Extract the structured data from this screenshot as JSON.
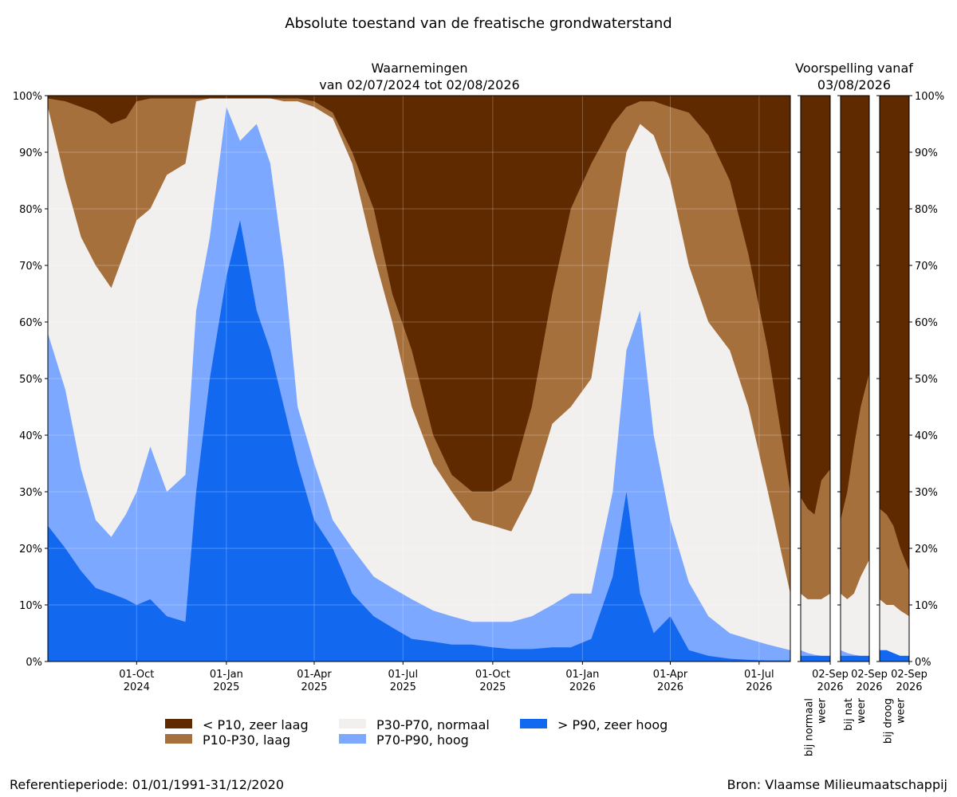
{
  "title": "Absolute toestand van de freatische grondwaterstand",
  "observed_title": [
    "Waarnemingen",
    "van 02/07/2024 tot 02/08/2026"
  ],
  "forecast_title": [
    "Voorspelling vanaf",
    "03/08/2026"
  ],
  "footer_left": "Referentieperiode: 01/01/1991-31/12/2020",
  "footer_right": "Bron: Vlaamse Milieumaatschappij",
  "colors": {
    "zeer_laag": "#5f2a00",
    "laag": "#a6703d",
    "normaal": "#f2f0ef",
    "hoog": "#7da8ff",
    "zeer_hoog": "#1269f0"
  },
  "legend": [
    {
      "key": "zeer_laag",
      "label": "< P10, zeer laag"
    },
    {
      "key": "laag",
      "label": "P10-P30, laag"
    },
    {
      "key": "normaal",
      "label": "P30-P70, normaal"
    },
    {
      "key": "hoog",
      "label": "P70-P90, hoog"
    },
    {
      "key": "zeer_hoog",
      "label": "> P90, zeer hoog"
    }
  ],
  "chart_data": {
    "type": "area",
    "stacked": true,
    "ylim": [
      0,
      100
    ],
    "y_ticks": [
      "0%",
      "10%",
      "20%",
      "30%",
      "40%",
      "50%",
      "60%",
      "70%",
      "80%",
      "90%",
      "100%"
    ],
    "y_tick_values": [
      0,
      10,
      20,
      30,
      40,
      50,
      60,
      70,
      80,
      90,
      100
    ],
    "grid": true,
    "legend_position": "bottom",
    "observed": {
      "xlim": [
        "2024-07-02",
        "2026-08-02"
      ],
      "x_ticks": [
        {
          "date": "2024-10-01",
          "label": [
            "01-Oct",
            "2024"
          ]
        },
        {
          "date": "2025-01-01",
          "label": [
            "01-Jan",
            "2025"
          ]
        },
        {
          "date": "2025-04-01",
          "label": [
            "01-Apr",
            "2025"
          ]
        },
        {
          "date": "2025-07-01",
          "label": [
            "01-Jul",
            "2025"
          ]
        },
        {
          "date": "2025-10-01",
          "label": [
            "01-Oct",
            "2025"
          ]
        },
        {
          "date": "2026-01-01",
          "label": [
            "01-Jan",
            "2026"
          ]
        },
        {
          "date": "2026-04-01",
          "label": [
            "01-Apr",
            "2026"
          ]
        },
        {
          "date": "2026-07-01",
          "label": [
            "01-Jul",
            "2026"
          ]
        }
      ],
      "x": [
        "2024-07-02",
        "2024-07-20",
        "2024-08-05",
        "2024-08-20",
        "2024-09-05",
        "2024-09-20",
        "2024-10-01",
        "2024-10-15",
        "2024-11-01",
        "2024-11-20",
        "2024-12-01",
        "2024-12-15",
        "2025-01-01",
        "2025-01-15",
        "2025-02-01",
        "2025-02-15",
        "2025-03-01",
        "2025-03-15",
        "2025-04-01",
        "2025-04-20",
        "2025-05-10",
        "2025-06-01",
        "2025-06-20",
        "2025-07-10",
        "2025-08-01",
        "2025-08-20",
        "2025-09-10",
        "2025-10-01",
        "2025-10-20",
        "2025-11-10",
        "2025-12-01",
        "2025-12-20",
        "2026-01-10",
        "2026-02-01",
        "2026-02-15",
        "2026-03-01",
        "2026-03-15",
        "2026-04-01",
        "2026-04-20",
        "2026-05-10",
        "2026-06-01",
        "2026-06-20",
        "2026-07-10",
        "2026-08-02"
      ],
      "series": [
        {
          "key": "zeer_hoog",
          "name": "> P90, zeer hoog",
          "values": [
            24,
            20,
            16,
            13,
            12,
            11,
            10,
            11,
            8,
            7,
            30,
            50,
            68,
            78,
            62,
            55,
            45,
            35,
            25,
            20,
            12,
            8,
            6,
            4,
            3.5,
            3,
            3,
            2.5,
            2.2,
            2.2,
            2.5,
            2.5,
            4,
            15,
            30,
            12,
            5,
            8,
            2,
            1,
            0.5,
            0.3,
            0.2,
            0.2
          ]
        },
        {
          "key": "hoog",
          "name": "P70-P90, hoog",
          "values": [
            58,
            48,
            34,
            25,
            22,
            26,
            30,
            38,
            30,
            33,
            62,
            75,
            98,
            92,
            95,
            88,
            70,
            45,
            35,
            25,
            20,
            15,
            13,
            11,
            9,
            8,
            7,
            7,
            7,
            8,
            10,
            12,
            12,
            30,
            55,
            62,
            40,
            25,
            14,
            8,
            5,
            4,
            3,
            2
          ]
        },
        {
          "key": "normaal",
          "name": "P30-P70, normaal",
          "values": [
            98,
            85,
            75,
            70,
            66,
            73,
            78,
            80,
            86,
            88,
            99,
            99.5,
            99.5,
            99.5,
            99.5,
            99.5,
            99,
            99,
            98,
            96,
            88,
            72,
            60,
            45,
            35,
            30,
            25,
            24,
            23,
            30,
            42,
            45,
            50,
            75,
            90,
            95,
            93,
            85,
            70,
            60,
            55,
            45,
            30,
            12
          ]
        },
        {
          "key": "laag",
          "name": "P10-P30, laag",
          "values": [
            99.5,
            99,
            98,
            97,
            95,
            96,
            99,
            99.5,
            99.5,
            99.5,
            99.5,
            99.5,
            99.5,
            99.5,
            99.5,
            99.5,
            99.5,
            99.5,
            99,
            97,
            90,
            80,
            65,
            55,
            40,
            33,
            30,
            30,
            32,
            45,
            65,
            80,
            88,
            95,
            98,
            99,
            99,
            98,
            97,
            93,
            85,
            72,
            55,
            30
          ]
        },
        {
          "key": "zeer_laag",
          "name": "< P10, zeer laag",
          "values": [
            100,
            100,
            100,
            100,
            100,
            100,
            100,
            100,
            100,
            100,
            100,
            100,
            100,
            100,
            100,
            100,
            100,
            100,
            100,
            100,
            100,
            100,
            100,
            100,
            100,
            100,
            100,
            100,
            100,
            100,
            100,
            100,
            100,
            100,
            100,
            100,
            100,
            100,
            100,
            100,
            100,
            100,
            100,
            100
          ]
        }
      ]
    },
    "forecast": [
      {
        "scenario": [
          "bij normaal",
          "weer"
        ],
        "x_tick": [
          "02-Sep",
          "2026"
        ],
        "x": [
          "2026-08-03",
          "2026-08-10",
          "2026-08-17",
          "2026-08-24",
          "2026-09-02"
        ],
        "series": [
          {
            "key": "zeer_hoog",
            "values": [
              1,
              1,
              1,
              1,
              1
            ]
          },
          {
            "key": "hoog",
            "values": [
              2,
              1.5,
              1.2,
              1,
              1
            ]
          },
          {
            "key": "normaal",
            "values": [
              12,
              11,
              11,
              11,
              12
            ]
          },
          {
            "key": "laag",
            "values": [
              29,
              27,
              26,
              32,
              34
            ]
          },
          {
            "key": "zeer_laag",
            "values": [
              100,
              100,
              100,
              100,
              100
            ]
          }
        ]
      },
      {
        "scenario": [
          "bij nat",
          "weer"
        ],
        "x_tick": [
          "02-Sep",
          "2026"
        ],
        "x": [
          "2026-08-03",
          "2026-08-10",
          "2026-08-17",
          "2026-08-24",
          "2026-09-02"
        ],
        "series": [
          {
            "key": "zeer_hoog",
            "values": [
              1,
              1,
              1,
              1,
              1
            ]
          },
          {
            "key": "hoog",
            "values": [
              2,
              1.5,
              1.2,
              1,
              1
            ]
          },
          {
            "key": "normaal",
            "values": [
              12,
              11,
              12,
              15,
              18
            ]
          },
          {
            "key": "laag",
            "values": [
              25,
              30,
              38,
              45,
              51
            ]
          },
          {
            "key": "zeer_laag",
            "values": [
              100,
              100,
              100,
              100,
              100
            ]
          }
        ]
      },
      {
        "scenario": [
          "bij droog",
          "weer"
        ],
        "x_tick": [
          "02-Sep",
          "2026"
        ],
        "x": [
          "2026-08-03",
          "2026-08-10",
          "2026-08-17",
          "2026-08-24",
          "2026-09-02"
        ],
        "series": [
          {
            "key": "zeer_hoog",
            "values": [
              2,
              2,
              1.5,
              1,
              1
            ]
          },
          {
            "key": "hoog",
            "values": [
              2,
              1.5,
              1.2,
              1,
              1
            ]
          },
          {
            "key": "normaal",
            "values": [
              11,
              10,
              10,
              9,
              8
            ]
          },
          {
            "key": "laag",
            "values": [
              27,
              26,
              24,
              20,
              16
            ]
          },
          {
            "key": "zeer_laag",
            "values": [
              100,
              100,
              100,
              100,
              100
            ]
          }
        ]
      }
    ]
  }
}
